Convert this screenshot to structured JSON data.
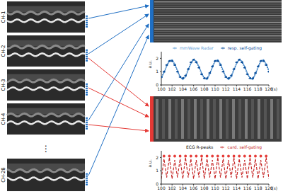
{
  "channels": [
    "CH-1",
    "CH-2",
    "CH-3",
    "CH-4",
    "⋮",
    "CH-28"
  ],
  "chart_data": [
    {
      "type": "line",
      "x": [
        100,
        100.5,
        101,
        101.5,
        102,
        102.5,
        103,
        103.5,
        104,
        104.5,
        105,
        105.5,
        106,
        106.5,
        107,
        107.5,
        108,
        108.5,
        109,
        109.5,
        110,
        110.5,
        111,
        111.5,
        112,
        112.5,
        113,
        113.5,
        114,
        114.5,
        115,
        115.5,
        116,
        116.5,
        117,
        117.5,
        118,
        118.5,
        119,
        119.5,
        120
      ],
      "xlim": [
        100,
        120
      ],
      "xticks": [
        100,
        102,
        104,
        106,
        108,
        110,
        112,
        114,
        116,
        118,
        120
      ],
      "ylim": [
        0,
        2.5
      ],
      "yticks": [
        0,
        1,
        2
      ],
      "xlabel": "t(s)",
      "ylabel": "a.u.",
      "legend": "upper right",
      "series": [
        {
          "name": "mmWave Radar",
          "color": "#5b9bd5",
          "line_style": "solid",
          "marker": "none",
          "values": [
            0.5,
            0.9,
            1.4,
            1.8,
            1.9,
            1.6,
            1.1,
            0.6,
            0.4,
            0.6,
            1.1,
            1.6,
            1.9,
            1.8,
            1.4,
            0.9,
            0.5,
            0.4,
            0.8,
            1.3,
            1.8,
            1.9,
            1.6,
            1.1,
            0.6,
            0.4,
            0.6,
            1.1,
            1.6,
            1.9,
            1.8,
            1.4,
            0.9,
            0.5,
            0.4,
            0.8,
            1.3,
            1.8,
            1.9,
            1.6,
            1.1
          ]
        },
        {
          "name": "resp. self-gating",
          "color": "#0b4f9c",
          "line_style": "dotted",
          "marker": "o",
          "values": [
            0.6,
            1.0,
            1.5,
            1.8,
            1.8,
            1.5,
            1.0,
            0.6,
            0.5,
            0.7,
            1.2,
            1.7,
            1.9,
            1.7,
            1.3,
            0.8,
            0.5,
            0.5,
            0.9,
            1.4,
            1.8,
            1.8,
            1.5,
            1.0,
            0.6,
            0.5,
            0.7,
            1.2,
            1.7,
            1.9,
            1.7,
            1.3,
            0.8,
            0.5,
            0.5,
            0.9,
            1.4,
            1.8,
            1.8,
            1.5,
            1.0
          ]
        }
      ]
    },
    {
      "type": "line",
      "x": [
        100,
        100.5,
        101,
        101.5,
        102,
        102.5,
        103,
        103.5,
        104,
        104.5,
        105,
        105.5,
        106,
        106.5,
        107,
        107.5,
        108,
        108.5,
        109,
        109.5,
        110,
        110.5,
        111,
        111.5,
        112,
        112.5,
        113,
        113.5,
        114,
        114.5,
        115,
        115.5,
        116,
        116.5,
        117,
        117.5,
        118,
        118.5,
        119,
        119.5,
        120
      ],
      "xlim": [
        100,
        120
      ],
      "xticks": [
        100,
        102,
        104,
        106,
        108,
        110,
        112,
        114,
        116,
        118,
        120
      ],
      "ylim": [
        0,
        2.5
      ],
      "yticks": [
        0,
        1,
        2
      ],
      "xlabel": "t(s)",
      "ylabel": "a.u.",
      "legend": "upper right",
      "series": [
        {
          "name": "ECG R-peaks",
          "color": "#e53935",
          "line_style": "none",
          "marker": "o",
          "values": [
            null,
            2.1,
            null,
            2.1,
            null,
            2.1,
            null,
            2.1,
            null,
            2.1,
            null,
            2.1,
            null,
            2.1,
            null,
            2.1,
            null,
            2.1,
            null,
            2.1,
            null,
            2.1,
            null,
            2.1,
            null,
            2.1,
            null,
            2.1,
            null,
            2.1,
            null,
            2.1,
            null,
            2.1,
            null,
            2.1,
            null,
            2.1,
            null,
            2.1,
            null
          ]
        },
        {
          "name": "card. self-gating",
          "color": "#c62828",
          "line_style": "dashed",
          "marker": "none",
          "values": [
            0.4,
            1.9,
            0.5,
            2.0,
            0.4,
            1.8,
            0.5,
            1.9,
            0.4,
            2.0,
            0.5,
            1.9,
            0.4,
            1.8,
            0.5,
            2.0,
            0.4,
            1.9,
            0.5,
            1.8,
            0.4,
            2.0,
            0.5,
            1.9,
            0.4,
            1.8,
            0.5,
            2.0,
            0.4,
            1.9,
            0.5,
            1.8,
            0.4,
            2.0,
            0.5,
            1.9,
            0.4,
            1.8,
            0.5,
            2.0,
            0.4
          ]
        }
      ]
    }
  ]
}
